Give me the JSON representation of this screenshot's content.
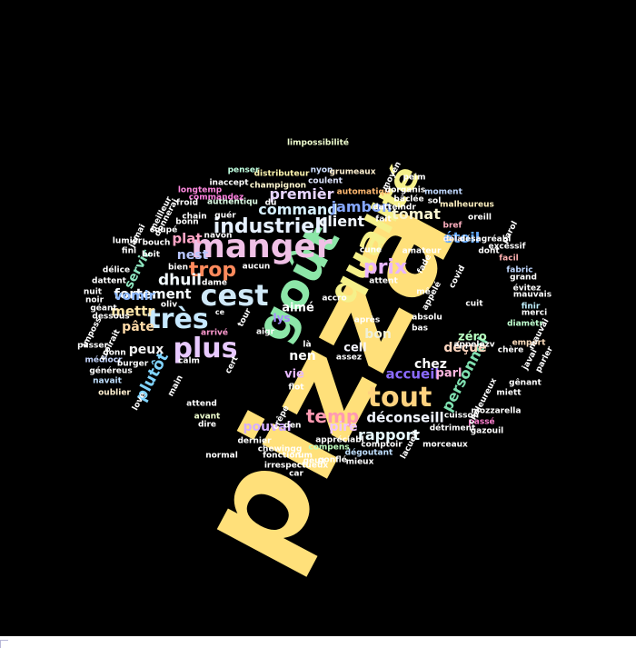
{
  "words": [
    {
      "text": "pizza",
      "color": "#ffe07a"
    },
    {
      "text": "goût",
      "color": "#8ce6a8"
    },
    {
      "text": "qualité",
      "color": "#f5f08a"
    },
    {
      "text": "manger",
      "color": "#f0c0e6"
    },
    {
      "text": "cest",
      "color": "#cfe8f7"
    },
    {
      "text": "tout",
      "color": "#ffd27f"
    },
    {
      "text": "très",
      "color": "#c6e8ff"
    },
    {
      "text": "plus",
      "color": "#e8c9ff"
    },
    {
      "text": "industriell",
      "color": "#e6f0ff"
    },
    {
      "text": "trop",
      "color": "#ff8a5c"
    },
    {
      "text": "prix",
      "color": "#e9b6ff"
    },
    {
      "text": "temp",
      "color": "#ff9ab2"
    },
    {
      "text": "command",
      "color": "#d6f0ff"
    },
    {
      "text": "premièr",
      "color": "#e8d6ff"
    },
    {
      "text": "jambon",
      "color": "#86a8ff"
    },
    {
      "text": "tomat",
      "color": "#f8f4d0"
    },
    {
      "text": "client",
      "color": "#f3f8ff"
    },
    {
      "text": "fortement",
      "color": "#f5fbff"
    },
    {
      "text": "personnel",
      "color": "#7fe0b0"
    },
    {
      "text": "déconseill",
      "color": "#f0f4ff"
    },
    {
      "text": "rapport",
      "color": "#e8fbff"
    },
    {
      "text": "accueil",
      "color": "#8a6bff"
    },
    {
      "text": "étoil",
      "color": "#5fa8ff"
    },
    {
      "text": "plutôt",
      "color": "#80d4ff"
    },
    {
      "text": "dhuil",
      "color": "#f3fbff"
    },
    {
      "text": "nest",
      "color": "#b8c6ff"
    },
    {
      "text": "plat",
      "color": "#ffa5c6"
    },
    {
      "text": "servic",
      "color": "#8ee6c0"
    },
    {
      "text": "mettr",
      "color": "#ffe6a8"
    },
    {
      "text": "vomir",
      "color": "#8ab8ff"
    },
    {
      "text": "pâte",
      "color": "#ffdba8"
    },
    {
      "text": "peux",
      "color": "#f0f0f0"
    },
    {
      "text": "aimé",
      "color": "#ffffff"
    },
    {
      "text": "nen",
      "color": "#ffffff"
    },
    {
      "text": "lys",
      "color": "#a78bff"
    },
    {
      "text": "bon",
      "color": "#f0f0d8"
    },
    {
      "text": "cell",
      "color": "#f6f6ff"
    },
    {
      "text": "chez",
      "color": "#ffffff"
    },
    {
      "text": "déçue",
      "color": "#ffd6c0"
    },
    {
      "text": "zéro",
      "color": "#b8ffc0"
    },
    {
      "text": "parl",
      "color": "#ffb6e0"
    },
    {
      "text": "vie",
      "color": "#e6b8ff"
    },
    {
      "text": "pire",
      "color": "#f0c6ff"
    },
    {
      "text": "pouvai",
      "color": "#d6b0ff"
    },
    {
      "text": "limpossibilité",
      "color": "#f0ffd0"
    },
    {
      "text": "nyon",
      "color": "#cfe0ff"
    },
    {
      "text": "grumeaux",
      "color": "#fff0d0"
    },
    {
      "text": "distributeur",
      "color": "#fff6b0"
    },
    {
      "text": "coulent",
      "color": "#e0e6ff"
    },
    {
      "text": "penser",
      "color": "#c0ffe0"
    },
    {
      "text": "inaccept",
      "color": "#ffffff"
    },
    {
      "text": "champignon",
      "color": "#fff8d0"
    },
    {
      "text": "authentiqu",
      "color": "#e0ffe8"
    },
    {
      "text": "longtemp",
      "color": "#ff8ae0"
    },
    {
      "text": "automatiqu",
      "color": "#ffb870"
    },
    {
      "text": "dorganis",
      "color": "#ffffff"
    },
    {
      "text": "moment",
      "color": "#c0d8ff"
    },
    {
      "text": "malheureus",
      "color": "#fff0c0"
    },
    {
      "text": "lumièr",
      "color": "#ffffff"
    },
    {
      "text": "bouch",
      "color": "#ffffff"
    },
    {
      "text": "délai",
      "color": "#fff0f0"
    },
    {
      "text": "désagréabl",
      "color": "#ffffff"
    },
    {
      "text": "dont",
      "color": "#ffffff"
    },
    {
      "text": "excessif",
      "color": "#ffffff"
    },
    {
      "text": "fabric",
      "color": "#c0d8ff"
    },
    {
      "text": "facil",
      "color": "#ffb0b0"
    },
    {
      "text": "évitez",
      "color": "#ffffff"
    },
    {
      "text": "mauvais",
      "color": "#ffffff"
    },
    {
      "text": "finir",
      "color": "#c0f0ff"
    },
    {
      "text": "merci",
      "color": "#ffffff"
    },
    {
      "text": "diamètr",
      "color": "#c0ffd0"
    },
    {
      "text": "emport",
      "color": "#ffe0c0"
    },
    {
      "text": "absolu",
      "color": "#ffffff"
    },
    {
      "text": "cuit",
      "color": "#ffffff"
    },
    {
      "text": "accro",
      "color": "#ffffff"
    },
    {
      "text": "dessous",
      "color": "#ffffff"
    },
    {
      "text": "passer",
      "color": "#ffffff"
    },
    {
      "text": "médiocr",
      "color": "#c8d8ff"
    },
    {
      "text": "navait",
      "color": "#c0e0ff"
    },
    {
      "text": "oublier",
      "color": "#fff0d0"
    },
    {
      "text": "généreus",
      "color": "#ffffff"
    },
    {
      "text": "burger",
      "color": "#ffffff"
    },
    {
      "text": "donn",
      "color": "#ffffff"
    },
    {
      "text": "calm",
      "color": "#ffffff"
    },
    {
      "text": "attend",
      "color": "#ffffff"
    },
    {
      "text": "avant",
      "color": "#f0ffd0"
    },
    {
      "text": "dire",
      "color": "#ffffff"
    },
    {
      "text": "normal",
      "color": "#ffffff"
    },
    {
      "text": "fonction",
      "color": "#ffffff"
    },
    {
      "text": "irrespectueux",
      "color": "#ffffff"
    },
    {
      "text": "gonflé",
      "color": "#ffffff"
    },
    {
      "text": "mieux",
      "color": "#ffffff"
    },
    {
      "text": "dégoutant",
      "color": "#c0e0ff"
    },
    {
      "text": "comptoir",
      "color": "#ffffff"
    },
    {
      "text": "appréciabl",
      "color": "#ffffff"
    },
    {
      "text": "compens",
      "color": "#c0ffc0"
    },
    {
      "text": "chewingg",
      "color": "#ffffff"
    },
    {
      "text": "morceaux",
      "color": "#ffffff"
    },
    {
      "text": "gazouil",
      "color": "#ffffff"
    },
    {
      "text": "mozzarella",
      "color": "#ffffff"
    },
    {
      "text": "passé",
      "color": "#ff80d0"
    },
    {
      "text": "miett",
      "color": "#ffffff"
    },
    {
      "text": "gênant",
      "color": "#ffffff"
    },
    {
      "text": "grand",
      "color": "#ffffff"
    },
    {
      "text": "chère",
      "color": "#ffffff"
    },
    {
      "text": "appelezv",
      "color": "#ffffff"
    },
    {
      "text": "cuisson",
      "color": "#ffffff"
    },
    {
      "text": "flot",
      "color": "#ffffff"
    },
    {
      "text": "aigr",
      "color": "#ffffff"
    },
    {
      "text": "assez",
      "color": "#ffffff"
    },
    {
      "text": "après",
      "color": "#ffffff"
    },
    {
      "text": "arrivé",
      "color": "#ff9ad0"
    },
    {
      "text": "bien",
      "color": "#ffffff"
    },
    {
      "text": "dame",
      "color": "#ffffff"
    },
    {
      "text": "aucun",
      "color": "#ffffff"
    },
    {
      "text": "boit",
      "color": "#ffffff"
    },
    {
      "text": "délice",
      "color": "#ffffff"
    },
    {
      "text": "fini",
      "color": "#ffffff"
    },
    {
      "text": "nuit",
      "color": "#ffffff"
    },
    {
      "text": "géant",
      "color": "#ffffff"
    },
    {
      "text": "noir",
      "color": "#ffffff"
    },
    {
      "text": "bonn",
      "color": "#ffffff"
    },
    {
      "text": "guér",
      "color": "#ffffff"
    },
    {
      "text": "navon",
      "color": "#ffffff"
    },
    {
      "text": "cune",
      "color": "#ffffff"
    },
    {
      "text": "amateur",
      "color": "#ffffff"
    },
    {
      "text": "datteindr",
      "color": "#ffffff"
    },
    {
      "text": "bâclée",
      "color": "#ffffff"
    },
    {
      "text": "bref",
      "color": "#ffb0c0"
    },
    {
      "text": "peim",
      "color": "#ffffff"
    },
    {
      "text": "den",
      "color": "#ffffff"
    },
    {
      "text": "um",
      "color": "#ffffff"
    },
    {
      "text": "crêpe",
      "color": "#ffffff"
    },
    {
      "text": "dû",
      "color": "#ffffff"
    },
    {
      "text": "car",
      "color": "#ffffff"
    },
    {
      "text": "fait",
      "color": "#ffffff"
    },
    {
      "text": "commandez",
      "color": "#ff80e0"
    },
    {
      "text": "meilleur",
      "color": "#ffffff"
    },
    {
      "text": "chain",
      "color": "#ffffff"
    },
    {
      "text": "jamai",
      "color": "#ffffff"
    },
    {
      "text": "coupé",
      "color": "#ffffff"
    },
    {
      "text": "dattent",
      "color": "#ffffff"
    },
    {
      "text": "froid",
      "color": "#ffffff"
    },
    {
      "text": "croirait",
      "color": "#ffffff"
    },
    {
      "text": "imposs",
      "color": "#ffffff"
    },
    {
      "text": "dernier",
      "color": "#ffffff"
    },
    {
      "text": "attent",
      "color": "#ffffff"
    },
    {
      "text": "covid",
      "color": "#ffffff"
    },
    {
      "text": "moyen",
      "color": "#ffffff"
    },
    {
      "text": "sol",
      "color": "#ffffff"
    },
    {
      "text": "oreill",
      "color": "#ffffff"
    },
    {
      "text": "fade",
      "color": "#ffffff"
    },
    {
      "text": "appelé",
      "color": "#ffffff"
    },
    {
      "text": "détriment",
      "color": "#ffffff"
    },
    {
      "text": "mauvai",
      "color": "#ffffff"
    },
    {
      "text": "javai",
      "color": "#ffffff"
    },
    {
      "text": "parler",
      "color": "#ffffff"
    },
    {
      "text": "chaleureux",
      "color": "#ffffff"
    },
    {
      "text": "parol",
      "color": "#ffffff"
    },
    {
      "text": "lacueil",
      "color": "#ffffff"
    },
    {
      "text": "bas",
      "color": "#ffffff"
    },
    {
      "text": "tour",
      "color": "#ffffff"
    },
    {
      "text": "cert",
      "color": "#ffffff"
    },
    {
      "text": "love",
      "color": "#ffffff"
    },
    {
      "text": "oliv",
      "color": "#ffffff"
    },
    {
      "text": "main",
      "color": "#ffffff"
    },
    {
      "text": "geux",
      "color": "#ffffff"
    },
    {
      "text": "mê",
      "color": "#ffffff"
    },
    {
      "text": "là",
      "color": "#ffffff"
    },
    {
      "text": "donnerai",
      "color": "#ffffff"
    },
    {
      "text": "ce",
      "color": "#ffffff"
    }
  ]
}
